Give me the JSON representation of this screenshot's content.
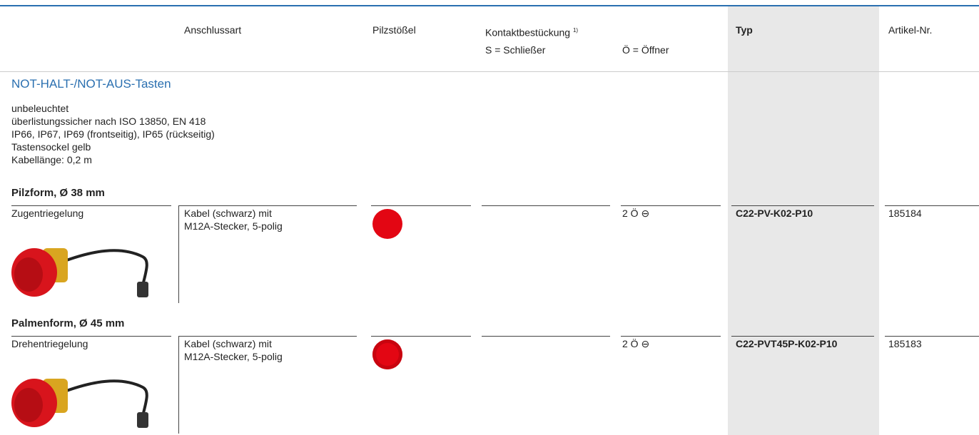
{
  "header": {
    "columns": [
      "Anschlussart",
      "Pilzstößel",
      "Kontaktbestückung",
      "Typ",
      "Artikel-Nr."
    ],
    "footnote_mark": "1)",
    "contact_types": [
      "S = Schließer",
      "Ö = Öffner"
    ]
  },
  "section": {
    "title": "NOT-HALT-/NOT-AUS-Tasten",
    "description": [
      "unbeleuchtet",
      "überlistungssicher nach ISO 13850, EN 418",
      "IP66, IP67, IP69 (frontseitig), IP65 (rückseitig)",
      "Tastensockel gelb",
      "Kabellänge: 0,2 m"
    ]
  },
  "groups": [
    {
      "title": "Pilzform, Ø 38 mm",
      "row": {
        "release": "Zugentriegelung",
        "connection": [
          "Kabel (schwarz) mit",
          "M12A-Stecker, 5-polig"
        ],
        "contacts": "2 Ö ⊖",
        "type": "C22-PV-K02-P10",
        "article": "185184"
      }
    },
    {
      "title": "Palmenform, Ø 45 mm",
      "row": {
        "release": "Drehentriegelung",
        "connection": [
          "Kabel (schwarz) mit",
          "M12A-Stecker, 5-polig"
        ],
        "contacts": "2 Ö ⊖",
        "type": "C22-PVT45P-K02-P10",
        "article": "185183"
      }
    }
  ]
}
